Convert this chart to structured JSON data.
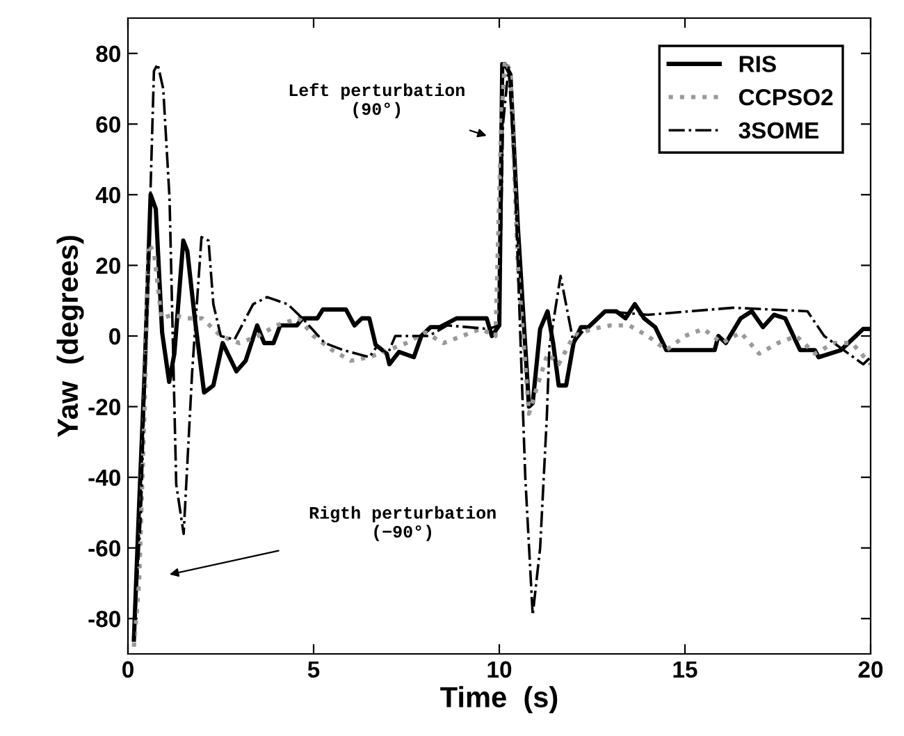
{
  "chart_data": {
    "type": "line",
    "xlabel": "Time  (s)",
    "ylabel": "Yaw  (degrees)",
    "xlim": [
      0,
      20
    ],
    "ylim": [
      -90,
      90
    ],
    "xticks": [
      0,
      5,
      10,
      15,
      20
    ],
    "yticks": [
      -80,
      -60,
      -40,
      -20,
      0,
      20,
      40,
      60,
      80
    ],
    "grid": false,
    "legend": "top right",
    "marker": "none",
    "series": [
      {
        "name": "RIS",
        "color": "#000000",
        "line_style": "solid",
        "x": [
          0.16,
          0.3,
          0.45,
          0.61,
          0.75,
          0.92,
          1.11,
          1.25,
          1.49,
          1.6,
          1.8,
          2.05,
          2.3,
          2.55,
          2.92,
          3.17,
          3.48,
          3.67,
          3.92,
          4.1,
          4.55,
          4.7,
          5.1,
          5.25,
          5.87,
          6.1,
          6.3,
          6.5,
          6.67,
          6.97,
          7.04,
          7.3,
          7.7,
          7.9,
          8.15,
          8.4,
          8.85,
          9.66,
          9.8,
          10.0,
          10.08,
          10.15,
          10.3,
          10.5,
          10.8,
          10.9,
          11.1,
          11.3,
          11.45,
          11.6,
          11.8,
          12.0,
          12.2,
          12.4,
          12.85,
          13.15,
          13.4,
          13.65,
          13.9,
          14.2,
          14.5,
          15.8,
          15.9,
          16.1,
          16.5,
          16.8,
          17.1,
          17.4,
          17.7,
          18.1,
          18.5,
          18.6,
          19.2,
          19.6,
          19.8,
          20.0
        ],
        "values": [
          -86,
          -48,
          -10,
          40,
          36,
          1,
          -13,
          -5,
          27,
          24,
          5,
          -16,
          -14,
          -2,
          -10,
          -7,
          3,
          -2,
          -2,
          3,
          3,
          5,
          5,
          7.5,
          7.5,
          3,
          5,
          5,
          -2.5,
          -5,
          -8,
          -4.5,
          -6,
          0,
          2.5,
          2.5,
          5,
          5,
          0,
          3,
          77,
          77,
          74,
          31,
          -20,
          -19,
          2,
          7,
          -2,
          -14,
          -14,
          -2,
          2.5,
          2.5,
          7,
          7,
          5,
          9,
          5,
          2.5,
          -4,
          -4,
          0,
          -2,
          5,
          7,
          2.5,
          6,
          5,
          -4,
          -4,
          -6,
          -4,
          0,
          2,
          2
        ]
      },
      {
        "name": "CCPSO2",
        "color": "#9a9a9a",
        "line_style": "dotted",
        "x": [
          0.16,
          0.3,
          0.45,
          0.55,
          0.7,
          0.9,
          1.2,
          1.6,
          2.0,
          2.5,
          3.0,
          3.5,
          4.0,
          4.6,
          5.0,
          5.5,
          6.0,
          6.5,
          7.0,
          7.5,
          8.0,
          8.5,
          9.0,
          9.5,
          9.9,
          10.05,
          10.15,
          10.3,
          10.5,
          10.8,
          11.0,
          11.3,
          11.6,
          12.0,
          12.5,
          13.0,
          13.5,
          14.0,
          14.5,
          15.0,
          15.5,
          16.0,
          16.5,
          17.0,
          17.5,
          18.0,
          18.5,
          19.0,
          19.5,
          20.0
        ],
        "values": [
          -88,
          -70,
          -20,
          26,
          24,
          5,
          6,
          5,
          5,
          0,
          -2,
          0,
          3,
          5,
          0,
          -4,
          -7,
          -6,
          -4,
          -2,
          1,
          -2,
          0,
          2,
          0,
          60,
          78,
          75,
          20,
          -22,
          -15,
          -5,
          -8,
          0,
          2,
          3,
          3,
          0,
          -4,
          0,
          2,
          -2,
          1,
          -5,
          -2,
          0,
          -5,
          -2,
          -2,
          -8
        ]
      },
      {
        "name": "3SOME",
        "color": "#000000",
        "line_style": "dashdot",
        "x": [
          0.16,
          0.35,
          0.55,
          0.7,
          0.8,
          0.95,
          1.12,
          1.3,
          1.5,
          1.73,
          1.98,
          2.17,
          2.3,
          2.5,
          2.87,
          3.37,
          3.75,
          4.3,
          4.7,
          5.3,
          5.8,
          6.5,
          6.7,
          7.0,
          7.2,
          7.6,
          8.1,
          8.6,
          9.7,
          10.0,
          10.1,
          10.25,
          10.4,
          10.7,
          10.9,
          11.1,
          11.28,
          11.35,
          11.65,
          12.0,
          12.3,
          12.85,
          14.0,
          16.3,
          18.3,
          18.75,
          19.8,
          20.0
        ],
        "values": [
          -86,
          -50,
          20,
          75,
          77,
          70,
          39,
          -42,
          -56,
          -10,
          28,
          27,
          9,
          0,
          -1,
          9,
          11,
          9,
          5,
          -2,
          -4,
          -6,
          -3,
          -5,
          0,
          0,
          0,
          3,
          2,
          3,
          60,
          76,
          50,
          -40,
          -79,
          -60,
          -23,
          -3,
          17,
          -2,
          2,
          7,
          6,
          8,
          7,
          0,
          -8,
          -6
        ]
      }
    ],
    "annotations": [
      "Left perturbation\n(90°)",
      "Rigth perturbation\n(−90°)"
    ]
  }
}
